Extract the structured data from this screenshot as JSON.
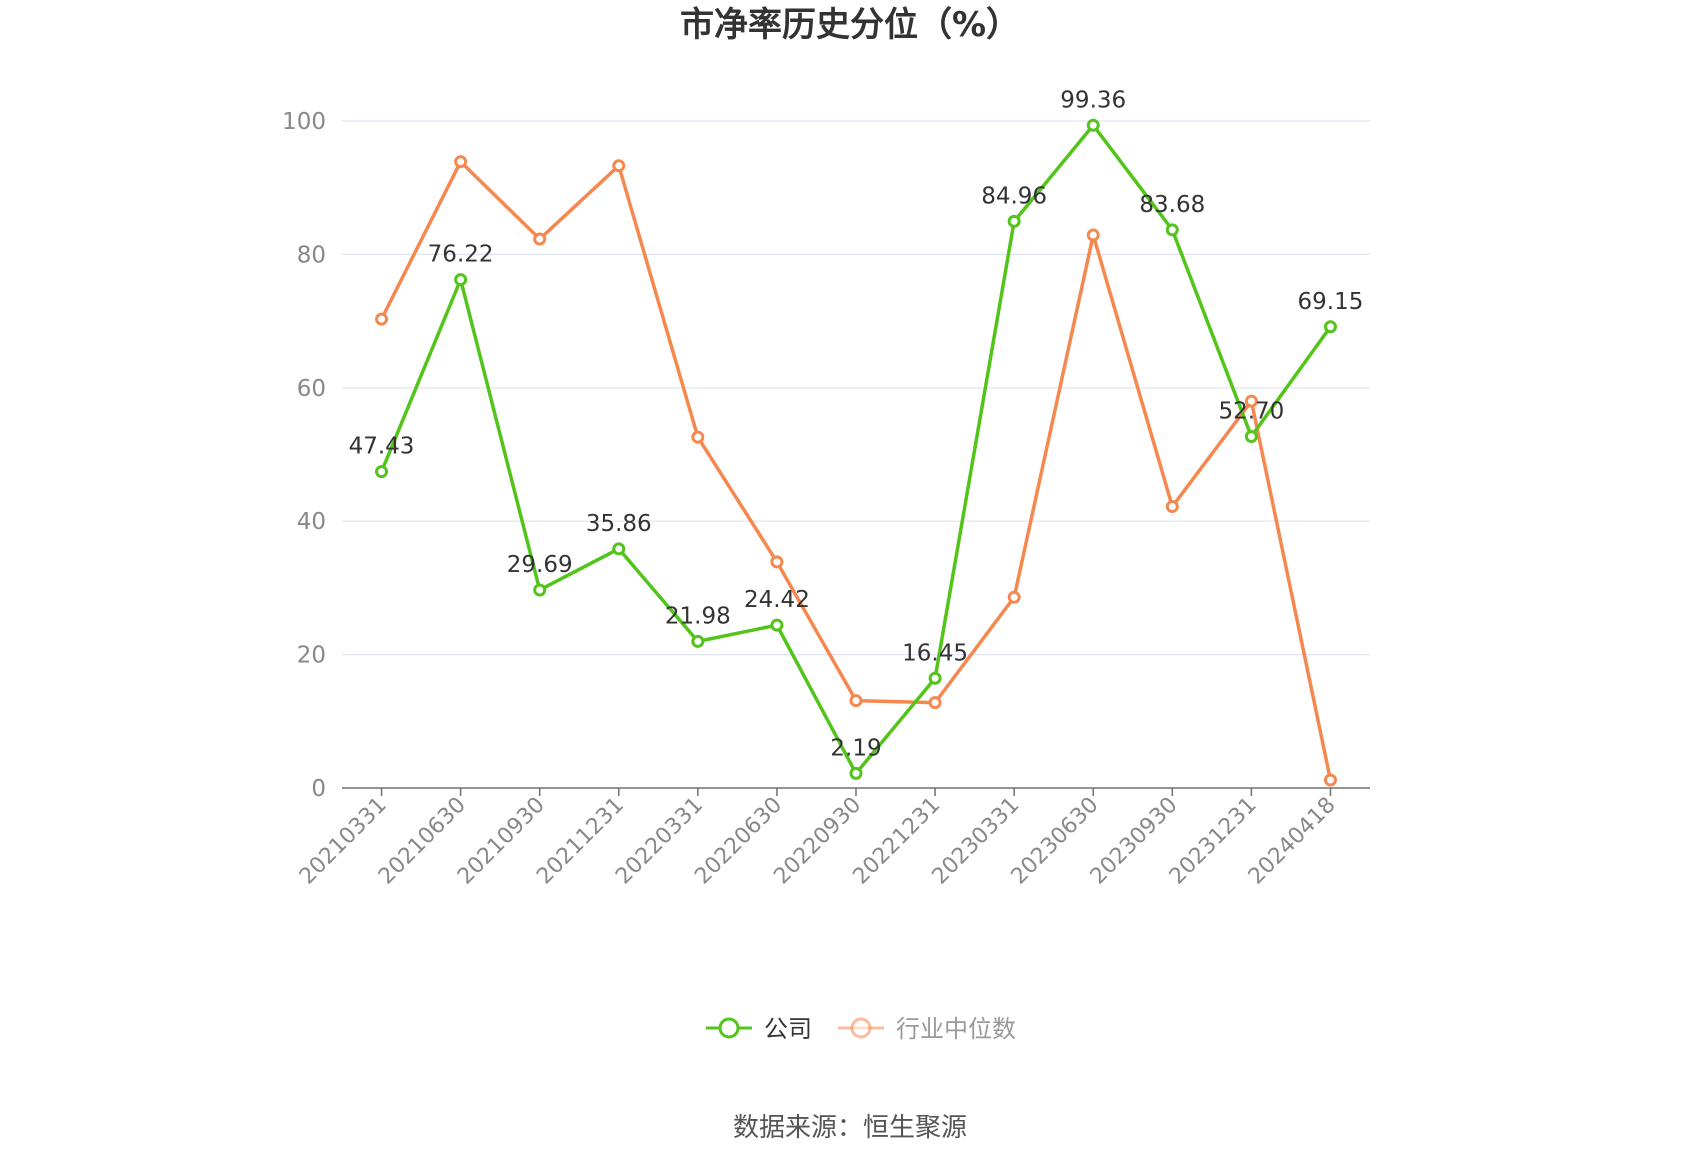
{
  "chart_data": {
    "type": "line",
    "title": "市净率历史分位（%）",
    "categories": [
      "20210331",
      "20210630",
      "20210930",
      "20211231",
      "20220331",
      "20220630",
      "20220930",
      "20221231",
      "20230331",
      "20230630",
      "20230930",
      "20231231",
      "20240418"
    ],
    "series": [
      {
        "name": "公司",
        "color": "#52c41a",
        "values": [
          47.43,
          76.22,
          29.69,
          35.86,
          21.98,
          24.42,
          2.19,
          16.45,
          84.96,
          99.36,
          83.68,
          52.7,
          69.15
        ],
        "labels": [
          "47.43",
          "76.22",
          "29.69",
          "35.86",
          "21.98",
          "24.42",
          "2.19",
          "16.45",
          "84.96",
          "99.36",
          "83.68",
          "52.70",
          "69.15"
        ]
      },
      {
        "name": "行业中位数",
        "color": "#f5884f",
        "values": [
          70.3,
          93.9,
          82.3,
          93.3,
          52.6,
          33.9,
          13.1,
          12.8,
          28.6,
          82.9,
          42.2,
          58.0,
          1.2
        ]
      }
    ],
    "ylim": [
      0,
      100
    ],
    "yticks": [
      "0",
      "20",
      "40",
      "60",
      "80",
      "100"
    ],
    "grid": true,
    "legend_position": "bottom-center"
  },
  "source": "数据来源：恒生聚源"
}
